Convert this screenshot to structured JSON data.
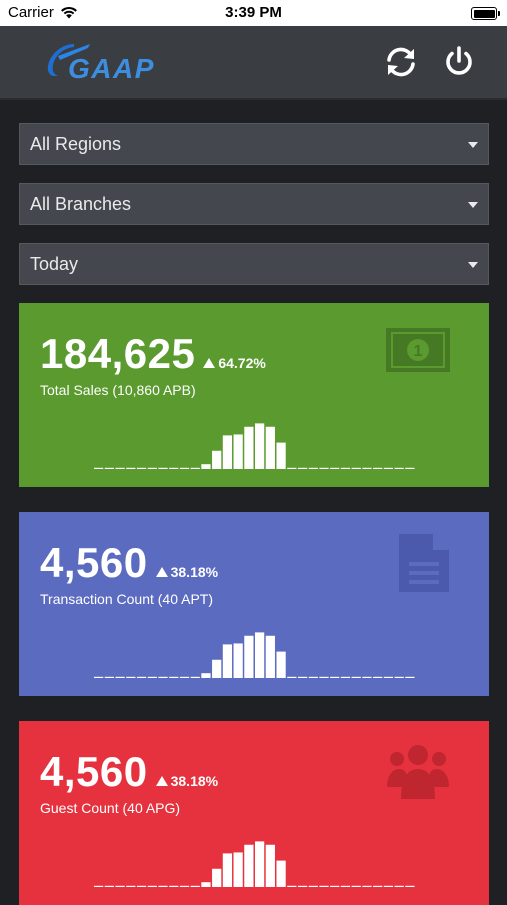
{
  "status_bar": {
    "carrier": "Carrier",
    "time": "3:39 PM"
  },
  "header": {
    "logo_text": "GAAP",
    "refresh_icon": "refresh-icon",
    "power_icon": "power-icon"
  },
  "filters": [
    {
      "label": "All Regions"
    },
    {
      "label": "All Branches"
    },
    {
      "label": "Today"
    }
  ],
  "cards": [
    {
      "value": "184,625",
      "delta": "64.72%",
      "label": "Total Sales (10,860 APB)",
      "icon": "money-icon",
      "color": "#5a9a2e",
      "spark": [
        0,
        0,
        0,
        0,
        0,
        0,
        0,
        0,
        0,
        0,
        0.1,
        0.38,
        0.7,
        0.72,
        0.88,
        0.95,
        0.88,
        0.55,
        0,
        0,
        0,
        0,
        0,
        0,
        0,
        0,
        0,
        0,
        0,
        0
      ]
    },
    {
      "value": "4,560",
      "delta": "38.18%",
      "label": "Transaction Count (40 APT)",
      "icon": "document-icon",
      "color": "#5b6bc0",
      "spark": [
        0,
        0,
        0,
        0,
        0,
        0,
        0,
        0,
        0,
        0,
        0.1,
        0.38,
        0.7,
        0.72,
        0.88,
        0.95,
        0.88,
        0.55,
        0,
        0,
        0,
        0,
        0,
        0,
        0,
        0,
        0,
        0,
        0,
        0
      ]
    },
    {
      "value": "4,560",
      "delta": "38.18%",
      "label": "Guest Count (40 APG)",
      "icon": "group-icon",
      "color": "#e5323e",
      "spark": [
        0,
        0,
        0,
        0,
        0,
        0,
        0,
        0,
        0,
        0,
        0.1,
        0.38,
        0.7,
        0.72,
        0.88,
        0.95,
        0.88,
        0.55,
        0,
        0,
        0,
        0,
        0,
        0,
        0,
        0,
        0,
        0,
        0,
        0
      ]
    }
  ],
  "colors": {
    "background": "#1e2023",
    "header": "#3a3d42",
    "filter": "#44474d"
  }
}
